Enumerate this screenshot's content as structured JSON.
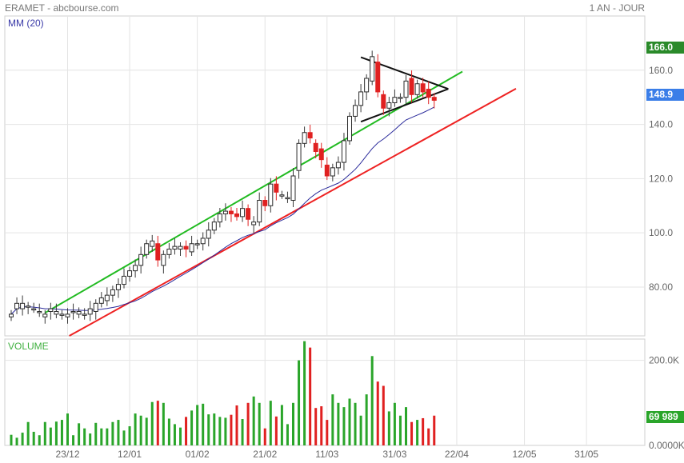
{
  "header": {
    "title": "ERAMET - abcbourse.com",
    "period": "1 AN - JOUR"
  },
  "indicators": {
    "ma_label": "MM (20)",
    "volume_label": "VOLUME"
  },
  "tags": {
    "high": "166.0",
    "last": "148.9",
    "last_volume": "69 989"
  },
  "colors": {
    "up": "#2aa52a",
    "down": "#e02020",
    "ma": "#2b2b9b",
    "grid": "#e4e4e4",
    "tag_high": "#2a8a2a",
    "tag_last": "#3a7ee8",
    "tag_vol": "#2aa52a",
    "trend_up": "#22bb22",
    "trend_low": "#ee2222",
    "triangle": "#111111"
  },
  "chart_data": [
    {
      "type": "candlestick",
      "title": "ERAMET",
      "ylim": [
        62,
        180
      ],
      "yticks": [
        "80.00",
        "100.0",
        "120.0",
        "140.0",
        "160.0"
      ],
      "xticks": [
        "23/12",
        "12/01",
        "01/02",
        "21/02",
        "11/03",
        "31/03",
        "22/04",
        "12/05",
        "31/05"
      ],
      "grid": true,
      "high_marker": 166.0,
      "last_price": 148.9,
      "close": [
        70,
        74,
        74,
        73,
        72,
        71,
        70,
        72,
        71,
        70,
        70,
        71,
        71,
        70,
        72,
        74,
        76,
        77,
        79,
        81,
        84,
        86,
        88,
        92,
        96,
        97,
        90,
        92,
        94,
        95,
        95,
        94,
        96,
        96,
        98,
        101,
        104,
        107,
        108,
        107,
        106,
        109,
        105,
        104,
        112,
        110,
        118,
        115,
        114,
        113,
        121,
        133,
        137,
        135,
        130,
        127,
        121,
        124,
        126,
        134,
        143,
        147,
        152,
        157,
        165,
        152,
        146,
        148,
        150,
        150,
        156,
        151,
        155,
        152,
        150,
        148.9
      ],
      "open": [
        69,
        72,
        72,
        73,
        72,
        71,
        69,
        71,
        70,
        70,
        69,
        71,
        70,
        70,
        70,
        71,
        74,
        75,
        77,
        79,
        81,
        84,
        86,
        88,
        92,
        95,
        96,
        88,
        92,
        94,
        94,
        95,
        93,
        96,
        96,
        98,
        101,
        104,
        107,
        108,
        107,
        106,
        109,
        103,
        104,
        112,
        110,
        118,
        114,
        113,
        112,
        123,
        133,
        137,
        133,
        131,
        125,
        121,
        124,
        126,
        134,
        143,
        147,
        152,
        156,
        163,
        151,
        146,
        148,
        150,
        150,
        157,
        151,
        155,
        153,
        150
      ],
      "volume_ylim": [
        0,
        250000
      ],
      "volume_ticks": [
        "0.0000K",
        "200.0K"
      ],
      "volume": [
        25000,
        18000,
        30000,
        55000,
        32000,
        24000,
        55000,
        42000,
        56000,
        60000,
        75000,
        24000,
        52000,
        40000,
        28000,
        53000,
        40000,
        40000,
        55000,
        60000,
        35000,
        45000,
        75000,
        70000,
        65000,
        102000,
        105000,
        100000,
        63000,
        50000,
        42000,
        67000,
        82000,
        95000,
        98000,
        73000,
        75000,
        67000,
        65000,
        72000,
        94000,
        62000,
        100000,
        115000,
        100000,
        40000,
        105000,
        68000,
        95000,
        50000,
        100000,
        200000,
        245000,
        230000,
        88000,
        92000,
        60000,
        120000,
        100000,
        90000,
        110000,
        100000,
        70000,
        120000,
        210000,
        150000,
        140000,
        80000,
        100000,
        70000,
        90000,
        55000,
        60000,
        64000,
        40000,
        69989
      ]
    }
  ]
}
